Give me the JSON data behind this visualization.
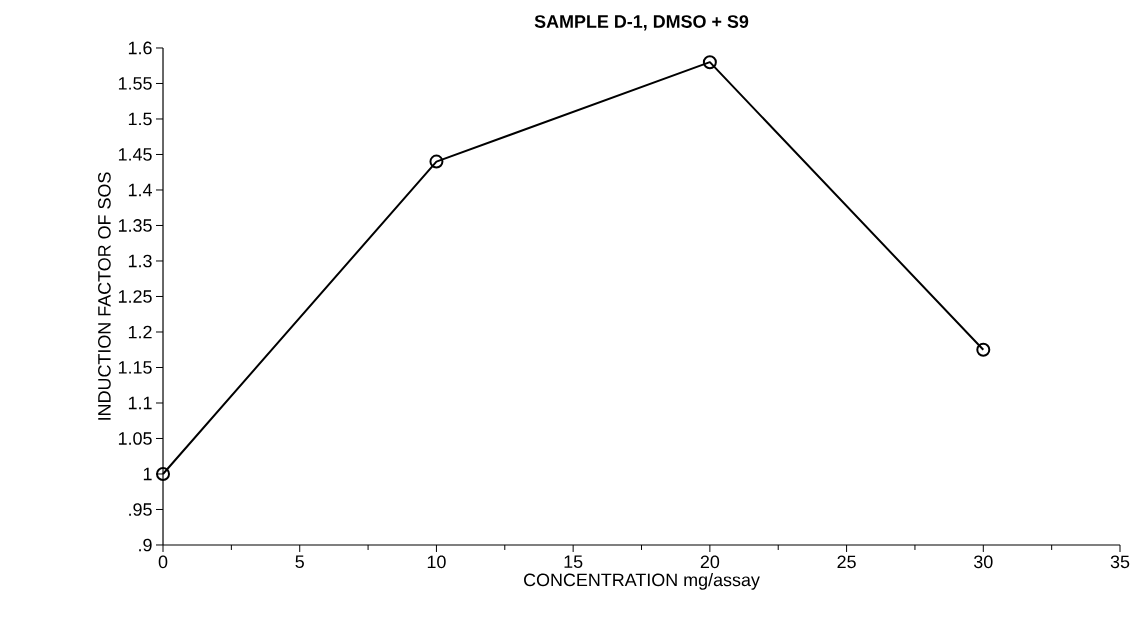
{
  "chart_data": {
    "type": "line",
    "title": "SAMPLE    D-1,    DMSO  +  S9",
    "xlabel": "CONCENTRATION  mg/assay",
    "ylabel": "INDUCTION FACTOR OF SOS",
    "x": [
      0,
      10,
      20,
      30
    ],
    "series": [
      {
        "color": "#000000",
        "values": [
          1.0,
          1.44,
          1.58,
          1.175
        ]
      }
    ],
    "xlim": [
      0,
      35
    ],
    "xticks": [
      0,
      5,
      10,
      15,
      20,
      25,
      30,
      35
    ],
    "ylim": [
      0.9,
      1.6
    ],
    "yticks": [
      {
        "value": 0.9,
        "label": ".9"
      },
      {
        "value": 0.95,
        "label": ".95"
      },
      1,
      1.05,
      1.1,
      1.15,
      1.2,
      1.25,
      1.3,
      1.35,
      1.4,
      1.45,
      1.5,
      1.55,
      1.6
    ],
    "marker": "circle",
    "line_style": "solid"
  }
}
